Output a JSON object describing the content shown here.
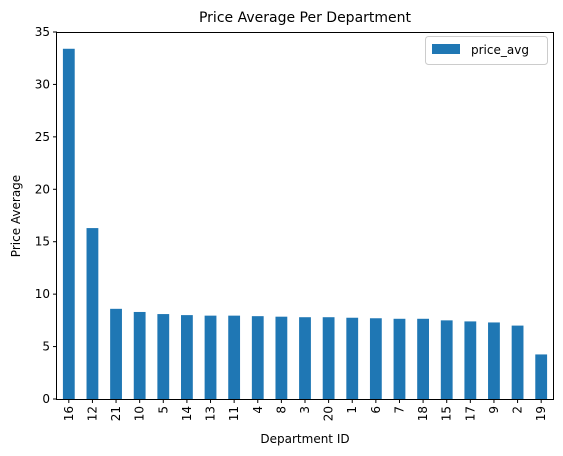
{
  "chart_data": {
    "type": "bar",
    "title": "Price Average Per Department",
    "xlabel": "Department ID",
    "ylabel": "Price Average",
    "categories": [
      "16",
      "12",
      "21",
      "10",
      "5",
      "14",
      "13",
      "11",
      "4",
      "8",
      "3",
      "20",
      "1",
      "6",
      "7",
      "18",
      "15",
      "17",
      "9",
      "2",
      "19"
    ],
    "series": [
      {
        "name": "price_avg",
        "color": "#1f77b4",
        "values": [
          33.4,
          16.3,
          8.6,
          8.3,
          8.1,
          8.0,
          7.95,
          7.95,
          7.9,
          7.85,
          7.8,
          7.8,
          7.75,
          7.7,
          7.65,
          7.65,
          7.5,
          7.4,
          7.3,
          7.0,
          4.25
        ]
      }
    ],
    "ylim": [
      0,
      35
    ],
    "yticks": [
      0,
      5,
      10,
      15,
      20,
      25,
      30,
      35
    ],
    "grid": false,
    "legend": "top-right"
  }
}
